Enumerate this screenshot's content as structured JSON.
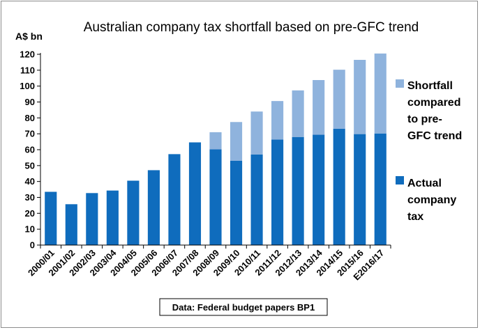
{
  "chart_data": {
    "type": "bar",
    "stacked": true,
    "title": "Australian company tax shortfall based on pre-GFC trend",
    "ylabel": "A$ bn",
    "xlabel": "",
    "ylim": [
      0,
      120
    ],
    "yticks": [
      0,
      10,
      20,
      30,
      40,
      50,
      60,
      70,
      80,
      90,
      100,
      110,
      120
    ],
    "grid": false,
    "legend_position": "right",
    "categories": [
      "2000/01",
      "2001/02",
      "2002/03",
      "2003/04",
      "2004/05",
      "2005/06",
      "2006/07",
      "2007/08",
      "2008/09",
      "2009/10",
      "2010/11",
      "2011/12",
      "2012/13",
      "2013/14",
      "2014/15",
      "2015/16",
      "E2016/17"
    ],
    "series": [
      {
        "name": "Actual company tax",
        "legend_lines": [
          "Actual",
          "company",
          "tax"
        ],
        "color": "#0f6cbd",
        "values": [
          33.5,
          25.7,
          32.7,
          34.3,
          40.5,
          47.1,
          57.2,
          64.6,
          60.2,
          53.0,
          57.0,
          66.4,
          68.0,
          69.4,
          73.2,
          69.8,
          70.2
        ]
      },
      {
        "name": "Shortfall compared to pre-GFC trend",
        "legend_lines": [
          "Shortfall",
          "compared",
          "to pre-",
          "GFC trend"
        ],
        "color": "#8fb3dd",
        "values": [
          0,
          0,
          0,
          0,
          0,
          0,
          0,
          0,
          10.8,
          24.4,
          27.0,
          24.2,
          29.3,
          34.4,
          37.1,
          46.7,
          50.3
        ]
      }
    ],
    "source_note": "Data: Federal budget papers BP1"
  }
}
